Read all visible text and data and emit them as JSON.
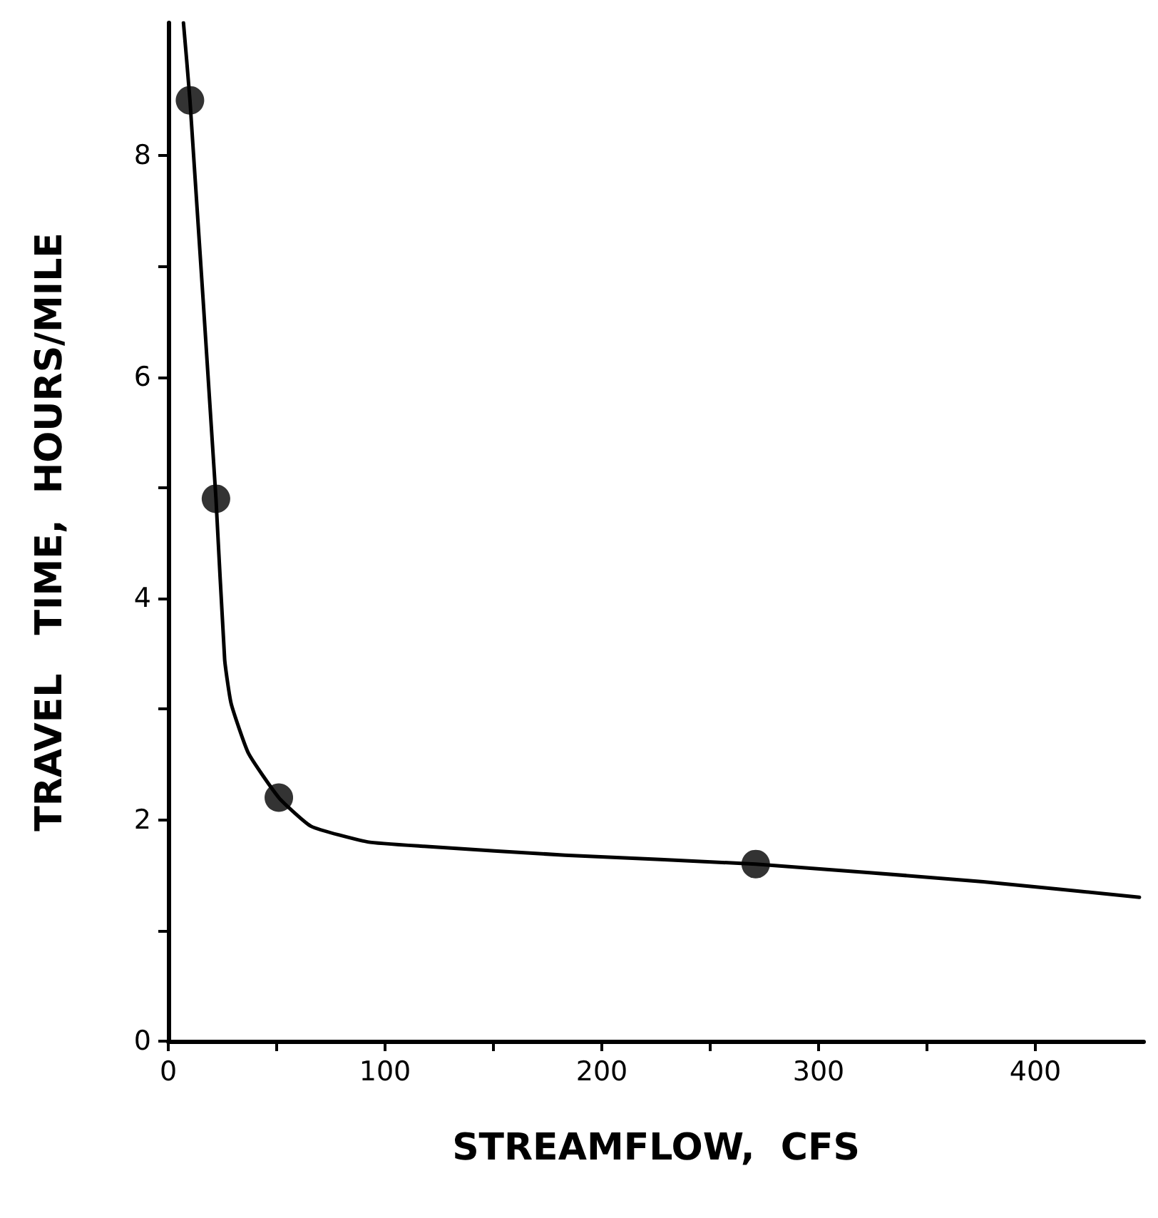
{
  "chart_data": {
    "type": "scatter",
    "xlabel": "STREAMFLOW,  CFS",
    "ylabel": "TRAVEL   TIME,  HOURS/MILE",
    "xlim": [
      0,
      450
    ],
    "ylim": [
      0,
      9.2
    ],
    "xticks": [
      0,
      {
        "value": 50,
        "label": null
      },
      100,
      {
        "value": 150,
        "label": null
      },
      200,
      {
        "value": 250,
        "label": null
      },
      300,
      {
        "value": 350,
        "label": null
      },
      400
    ],
    "yticks": [
      0,
      {
        "value": 1,
        "label": null
      },
      2,
      {
        "value": 3,
        "label": null
      },
      4,
      {
        "value": 5,
        "label": null
      },
      6,
      {
        "value": 7,
        "label": null
      },
      8
    ],
    "grid": false,
    "marker": "circle",
    "series": [
      {
        "color": "#000000",
        "x": [
          10,
          22,
          51,
          271
        ],
        "values": [
          8.5,
          4.9,
          2.2,
          1.6
        ]
      },
      {
        "type": "line",
        "color": "#000000",
        "marker": "none",
        "x": [
          7,
          10,
          22,
          26,
          29,
          37,
          51,
          66,
          92,
          118,
          183,
          271,
          376,
          448
        ],
        "values": [
          9.2,
          8.5,
          4.9,
          3.45,
          3.05,
          2.6,
          2.2,
          1.94,
          1.8,
          1.76,
          1.68,
          1.6,
          1.44,
          1.3
        ]
      }
    ]
  }
}
